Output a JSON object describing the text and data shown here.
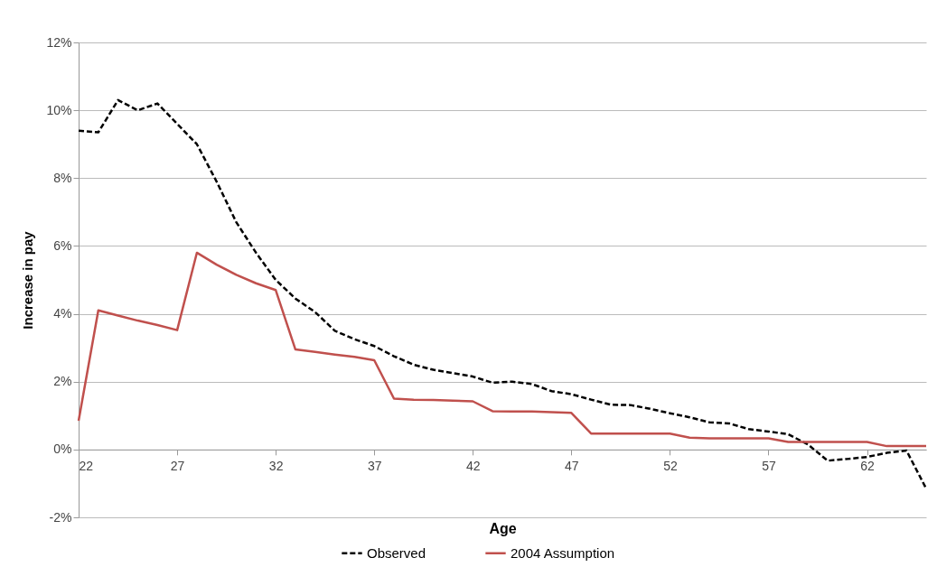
{
  "chart_data": {
    "type": "line",
    "xlabel": "Age",
    "ylabel": "Increase in pay",
    "x": [
      22,
      23,
      24,
      25,
      26,
      27,
      28,
      29,
      30,
      31,
      32,
      33,
      34,
      35,
      36,
      37,
      38,
      39,
      40,
      41,
      42,
      43,
      44,
      45,
      46,
      47,
      48,
      49,
      50,
      51,
      52,
      53,
      54,
      55,
      56,
      57,
      58,
      59,
      60,
      61,
      62,
      63,
      64,
      65
    ],
    "series": [
      {
        "name": "Observed",
        "color": "#000000",
        "line_style": "dashed",
        "values": [
          9.4,
          9.35,
          10.3,
          10.0,
          10.2,
          9.6,
          9.0,
          7.9,
          6.7,
          5.8,
          5.0,
          4.45,
          4.05,
          3.5,
          3.25,
          3.05,
          2.75,
          2.5,
          2.35,
          2.25,
          2.15,
          1.97,
          2.0,
          1.93,
          1.72,
          1.63,
          1.47,
          1.32,
          1.31,
          1.2,
          1.07,
          0.95,
          0.8,
          0.77,
          0.6,
          0.53,
          0.45,
          0.15,
          -0.33,
          -0.28,
          -0.22,
          -0.1,
          -0.03,
          -1.15
        ]
      },
      {
        "name": "2004 Assumption",
        "color": "#c0504d",
        "line_style": "solid",
        "values": [
          0.85,
          4.1,
          3.95,
          3.8,
          3.67,
          3.52,
          5.8,
          5.45,
          5.15,
          4.9,
          4.7,
          2.95,
          2.88,
          2.8,
          2.73,
          2.63,
          1.5,
          1.47,
          1.46,
          1.44,
          1.42,
          1.13,
          1.12,
          1.12,
          1.1,
          1.08,
          0.47,
          0.47,
          0.47,
          0.47,
          0.47,
          0.35,
          0.33,
          0.33,
          0.33,
          0.33,
          0.22,
          0.22,
          0.22,
          0.22,
          0.22,
          0.1,
          0.1,
          0.1
        ]
      }
    ],
    "xlim": [
      22,
      65
    ],
    "xticks": [
      22,
      27,
      32,
      37,
      42,
      47,
      52,
      57,
      62
    ],
    "ylim": [
      -2,
      12
    ],
    "yticks": [
      {
        "value": -2,
        "label": "-2%"
      },
      {
        "value": 0,
        "label": "0%"
      },
      {
        "value": 2,
        "label": "2%"
      },
      {
        "value": 4,
        "label": "4%"
      },
      {
        "value": 6,
        "label": "6%"
      },
      {
        "value": 8,
        "label": "8%"
      },
      {
        "value": 10,
        "label": "10%"
      },
      {
        "value": 12,
        "label": "12%"
      }
    ],
    "grid": "y",
    "legend": "bottom",
    "marker": "none"
  }
}
